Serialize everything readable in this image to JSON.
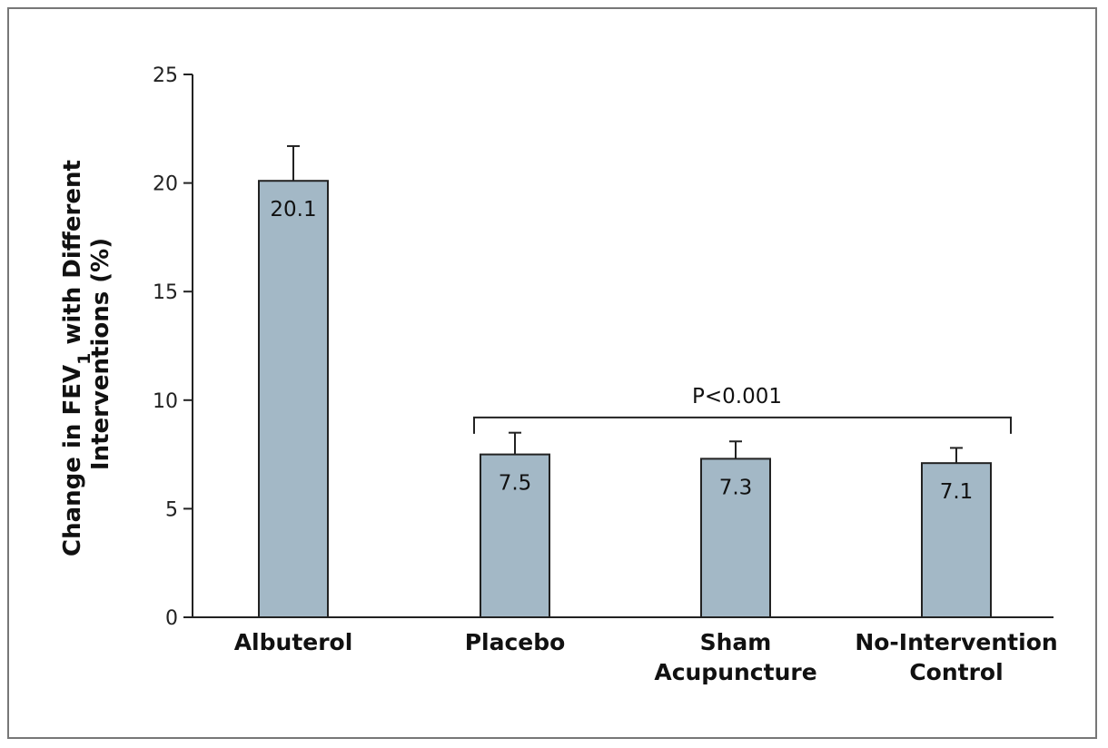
{
  "chart_data": {
    "type": "bar",
    "categories": [
      [
        "Albuterol"
      ],
      [
        "Placebo"
      ],
      [
        "Sham",
        "Acupuncture"
      ],
      [
        "No-Intervention",
        "Control"
      ]
    ],
    "values": [
      20.1,
      7.5,
      7.3,
      7.1
    ],
    "value_labels": [
      "20.1",
      "7.5",
      "7.3",
      "7.1"
    ],
    "error_upper": [
      21.7,
      8.5,
      8.1,
      7.8
    ],
    "ylim": [
      0,
      25
    ],
    "yticks": [
      0,
      5,
      10,
      15,
      20,
      25
    ],
    "ylabel_lines": [
      "Change in FEV",
      "1",
      " with Different",
      "Interventions (%)"
    ],
    "bar_color": "#a3b8c6",
    "grid": false,
    "significance": {
      "label": "P<0.001",
      "from_category": 1,
      "to_category": 3,
      "level": 9.2
    }
  }
}
